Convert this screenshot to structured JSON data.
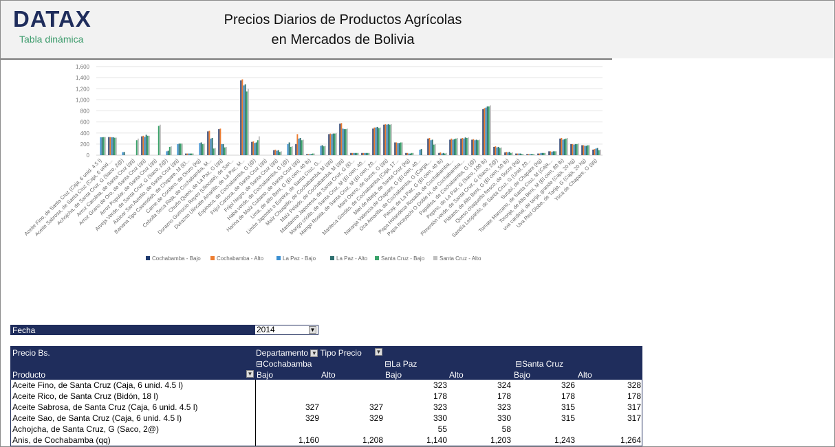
{
  "header": {
    "logo": "DATAX",
    "subtitle": "Tabla dinámica",
    "title_line1": "Precios Diarios de Productos Agrícolas",
    "title_line2": "en Mercados de Bolivia"
  },
  "filter": {
    "label": "Fecha",
    "value": "2014"
  },
  "pivot": {
    "value_label": "Precio Bs.",
    "col_field1": "Departamento",
    "col_field2": "Tipo Precio",
    "row_field": "Producto",
    "departments": [
      "Cochabamba",
      "La Paz",
      "Santa Cruz"
    ],
    "price_types": [
      "Bajo",
      "Alto",
      "Bajo",
      "Alto",
      "Bajo",
      "Alto"
    ],
    "rows": [
      {
        "product": "Aceite Fino, de Santa Cruz (Caja, 6 unid. 4.5 l)",
        "values": [
          "",
          "",
          "323",
          "324",
          "326",
          "328"
        ]
      },
      {
        "product": "Aceite Rico, de Santa Cruz (Bidón, 18 l)",
        "values": [
          "",
          "",
          "178",
          "178",
          "178",
          "178"
        ]
      },
      {
        "product": "Aceite Sabrosa, de Santa Cruz (Caja, 6 unid. 4.5 l)",
        "values": [
          "327",
          "327",
          "323",
          "323",
          "315",
          "317"
        ]
      },
      {
        "product": "Aceite Sao, de Santa Cruz (Caja, 6 unid. 4.5 l)",
        "values": [
          "329",
          "329",
          "330",
          "330",
          "315",
          "317"
        ]
      },
      {
        "product": "Achojcha, de Santa Cruz, G (Saco, 2@)",
        "values": [
          "",
          "",
          "55",
          "58",
          "",
          ""
        ]
      },
      {
        "product": "Anis, de Cochabamba (qq)",
        "values": [
          "1,160",
          "1,208",
          "1,140",
          "1,203",
          "1,243",
          "1,264"
        ]
      }
    ]
  },
  "chart_data": {
    "type": "bar",
    "ylim": [
      0,
      1600
    ],
    "yticks": [
      "0",
      "200",
      "400",
      "600",
      "800",
      "1,000",
      "1,200",
      "1,400",
      "1,600"
    ],
    "grid": true,
    "legend_position": "bottom",
    "colors": [
      "#1f3a6e",
      "#ed7d31",
      "#3a8fd1",
      "#2e6f6f",
      "#3aa36a",
      "#bfbfbf"
    ],
    "categories": [
      "Aceite Fino, de Santa Cruz (Caja, 6 unid. 4.5 l)",
      "Aceite Sabrosa, de Santa Cruz (Caja, 6 unid....",
      "Achojcha, de Santa Cruz, G (Saco, 2@)",
      "Arroz Carolina, de Santa Cruz (qq)",
      "Arroz Grano de Oro, de Santa Cruz (qq)",
      "Arroz Popular, de Santa Cruz (qq)",
      "Arveja Verde, de Santa Cruz, G (Saco, 2@)",
      "Azúcar San Aurelio, de Santa Cruz (qq)",
      "Banana Tipo Cavendish, de Chapare, M (El...",
      "Carne de Cordero, de Oruro (kg)",
      "Cebolla Seca Roja, de Cochabamba, M...",
      "Chuño Queni, de La Paz, G (qq)",
      "Durazno Gumucio Reyes (Ulincate), de San...",
      "Durazno Ulincate Amarillo, de La Paz, M...",
      "Espinaca, de Cochabamba, G (@)",
      "Frijol Carioca, de Santa Cruz (qq)",
      "Frijol Negro, de Santa Cruz (qq)",
      "Haba verde, de Cochabamba, G (@)",
      "Harina de Maíz Cubano, de Santa Cruz (qq)",
      "Lima, de alto Beni, G (El cien, 40 lb)",
      "Limón Japonés o Eureka, de Santa Cruz, G...",
      "Maíz Chuspillo, de Cochabamba, M (qq)",
      "Maíz Pelado, de Cochabamba, M (qq)",
      "Mandarina Japonesa, de Santa Cruz, G (El...",
      "Mango criollo, de Santa Cruz, M (El cien, 40...",
      "Mango Rosita, de Santa Cruz, M (El cien, 20...",
      "Maní Overo, de Sucre, G (qq)",
      "Manteca Gordito, de Cochabamba (Caja, 17...",
      "Miel de Abeja, de Santa Cruz (kg)",
      "Naranja Valencia de Chapare, G (El cien, 40...",
      "Oca Amarilla, de Cochabamba, G (Carga,...",
      "Pacay, de La Paz, G (El cien, 40 lb)",
      "Papa Holandesa Rosada, de Cochabamba,...",
      "Papa Iscayachi O Doble H, de Cochabamba,...",
      "Papalisa, de Cochabamba, G (@)",
      "Pepino, de La Paz, G (Saco, 100 lb)",
      "Pimentón verde, de Santa Cruz, G (Saco, 2@)",
      "Plátano, de Alto Beni, G (El cien, 50 lb)",
      "Queso chaqueño fresco, de Sucre (kg)",
      "Sandía Leopardo, de Santa Cruz, G (Unid. 20...",
      "Surubí, de Chapare (kg)",
      "Tomate Manzano, de Santa Cruz, M (Caja,...",
      "Toronja, de Alto Beni, M (El cien, 80 lb)",
      "uva cardinal, de tarija, grande (Caja, 20 kg)",
      "Uva Red Globe, de Tarija, G (Caja, 20 kg)",
      "Yuca de Chapare, G (qq)"
    ],
    "series": [
      {
        "name": "Cochabamba - Bajo",
        "values": [
          null,
          327,
          null,
          null,
          340,
          null,
          null,
          null,
          30,
          null,
          430,
          470,
          null,
          1350,
          240,
          null,
          90,
          null,
          200,
          20,
          null,
          380,
          570,
          40,
          40,
          480,
          550,
          230,
          40,
          null,
          300,
          40,
          280,
          300,
          280,
          830,
          150,
          50,
          30,
          20,
          30,
          70,
          300,
          200,
          180,
          100
        ]
      },
      {
        "name": "Cochabamba - Alto",
        "values": [
          null,
          327,
          null,
          null,
          350,
          null,
          null,
          null,
          30,
          null,
          440,
          480,
          null,
          1370,
          250,
          null,
          100,
          null,
          380,
          20,
          null,
          390,
          580,
          40,
          40,
          500,
          560,
          230,
          40,
          null,
          310,
          50,
          300,
          310,
          290,
          850,
          160,
          60,
          30,
          20,
          30,
          70,
          310,
          200,
          180,
          110
        ]
      },
      {
        "name": "La Paz - Bajo",
        "values": [
          323,
          323,
          55,
          null,
          330,
          null,
          70,
          200,
          30,
          220,
          300,
          200,
          null,
          1260,
          220,
          null,
          80,
          200,
          300,
          20,
          170,
          380,
          480,
          40,
          40,
          500,
          550,
          220,
          30,
          100,
          270,
          30,
          280,
          300,
          270,
          860,
          140,
          50,
          30,
          20,
          40,
          60,
          280,
          190,
          170,
          120
        ]
      },
      {
        "name": "La Paz - Alto",
        "values": [
          324,
          323,
          58,
          null,
          370,
          null,
          80,
          210,
          30,
          230,
          310,
          200,
          null,
          1280,
          230,
          null,
          90,
          230,
          310,
          20,
          180,
          390,
          470,
          40,
          40,
          510,
          560,
          220,
          30,
          110,
          280,
          40,
          290,
          320,
          280,
          880,
          150,
          60,
          30,
          20,
          40,
          70,
          290,
          200,
          170,
          130
        ]
      },
      {
        "name": "Santa Cruz - Bajo",
        "values": [
          326,
          315,
          null,
          270,
          350,
          530,
          150,
          210,
          30,
          200,
          120,
          140,
          null,
          1150,
          270,
          null,
          60,
          150,
          270,
          30,
          160,
          390,
          470,
          40,
          40,
          490,
          550,
          230,
          40,
          null,
          190,
          30,
          300,
          310,
          270,
          880,
          130,
          40,
          20,
          20,
          40,
          70,
          300,
          200,
          180,
          90
        ]
      },
      {
        "name": "Santa Cruz - Alto",
        "values": [
          328,
          317,
          null,
          300,
          350,
          550,
          160,
          210,
          30,
          210,
          130,
          150,
          null,
          1200,
          340,
          null,
          70,
          160,
          280,
          30,
          170,
          400,
          480,
          40,
          40,
          500,
          560,
          230,
          40,
          null,
          200,
          40,
          310,
          320,
          280,
          900,
          140,
          50,
          20,
          20,
          40,
          70,
          310,
          210,
          180,
          100
        ]
      }
    ]
  }
}
